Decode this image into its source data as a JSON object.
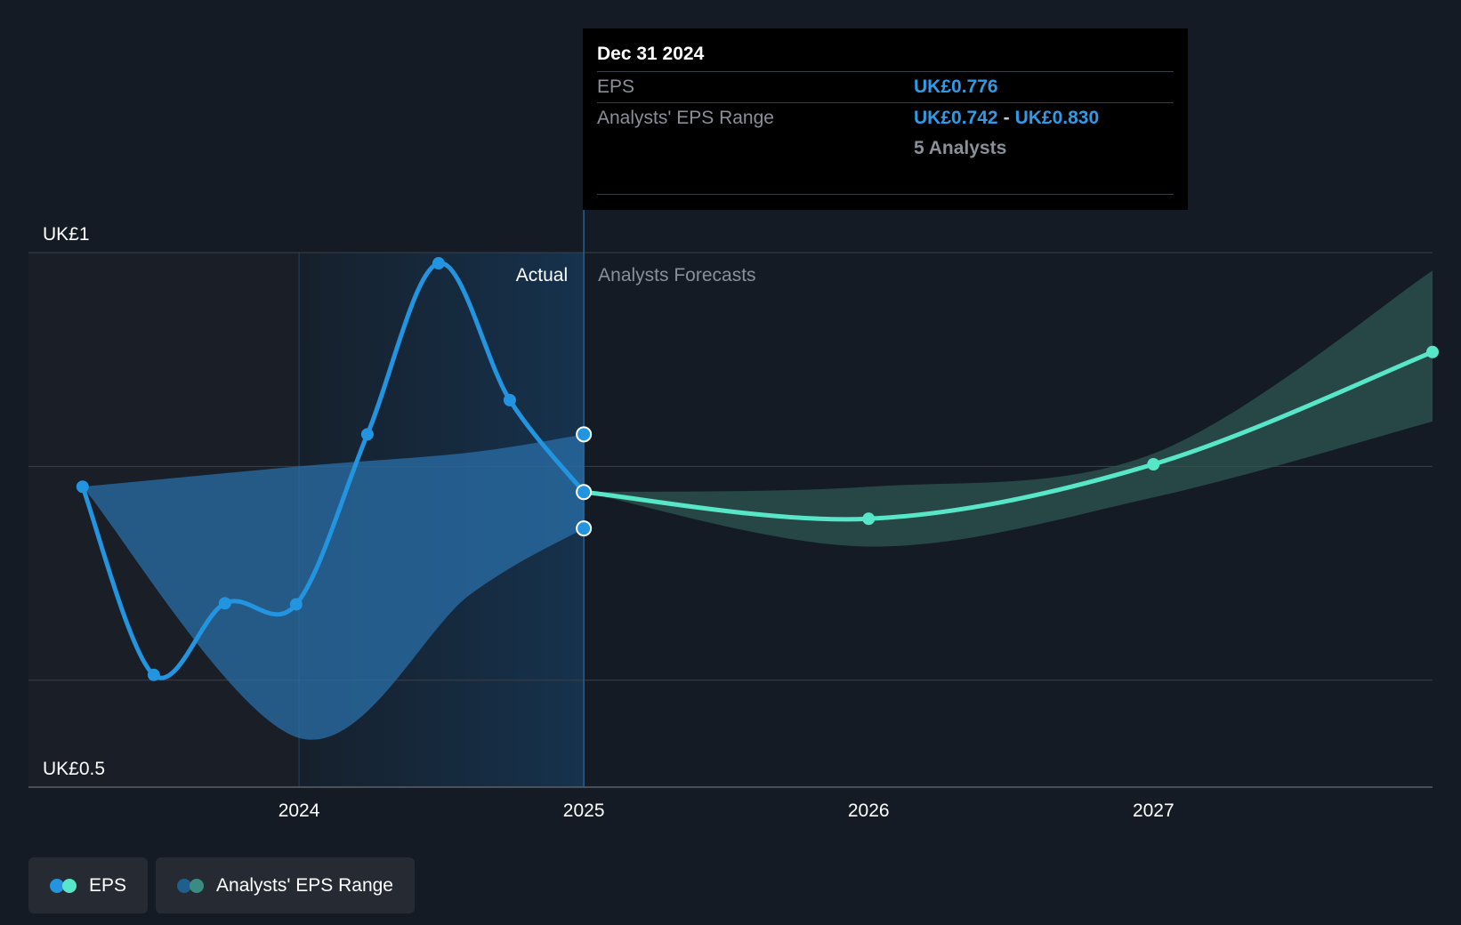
{
  "chart_data": {
    "type": "line",
    "y_ticks": [
      {
        "value": 1.0,
        "label": "UK£1"
      },
      {
        "value": 0.5,
        "label": "UK£0.5"
      }
    ],
    "ylim": [
      0.5,
      1.0
    ],
    "x_ticks": [
      {
        "value": 2024,
        "label": "2024"
      },
      {
        "value": 2025,
        "label": "2025"
      },
      {
        "value": 2026,
        "label": "2026"
      },
      {
        "value": 2027,
        "label": "2027"
      }
    ],
    "xlim": [
      2023.05,
      2027.98
    ],
    "divider_x": 2025.0,
    "highlight_start_x": 2024.0,
    "section_labels": {
      "actual": "Actual",
      "forecast": "Analysts Forecasts"
    },
    "series": [
      {
        "name": "EPS",
        "color": "#2394df",
        "points": [
          {
            "x": 2023.24,
            "y": 0.781
          },
          {
            "x": 2023.49,
            "y": 0.605
          },
          {
            "x": 2023.74,
            "y": 0.672
          },
          {
            "x": 2023.99,
            "y": 0.671
          },
          {
            "x": 2024.24,
            "y": 0.83
          },
          {
            "x": 2024.49,
            "y": 0.99
          },
          {
            "x": 2024.74,
            "y": 0.862
          },
          {
            "x": 2025.0,
            "y": 0.776
          }
        ]
      },
      {
        "name": "EPS",
        "color": "#58e6c9",
        "points": [
          {
            "x": 2025.0,
            "y": 0.776
          },
          {
            "x": 2026.0,
            "y": 0.751
          },
          {
            "x": 2027.0,
            "y": 0.802
          },
          {
            "x": 2027.98,
            "y": 0.907
          }
        ]
      }
    ],
    "range_series": [
      {
        "name": "Analysts' EPS Range",
        "color": "#2a6fa8",
        "upper": [
          {
            "x": 2023.24,
            "y": 0.781
          },
          {
            "x": 2024.0,
            "y": 0.8
          },
          {
            "x": 2024.6,
            "y": 0.813
          },
          {
            "x": 2025.0,
            "y": 0.83
          }
        ],
        "lower": [
          {
            "x": 2023.24,
            "y": 0.781
          },
          {
            "x": 2024.0,
            "y": 0.546
          },
          {
            "x": 2024.6,
            "y": 0.68
          },
          {
            "x": 2025.0,
            "y": 0.742
          }
        ]
      },
      {
        "name": "Analysts' EPS Range",
        "color": "#2e5a55",
        "upper": [
          {
            "x": 2025.0,
            "y": 0.776
          },
          {
            "x": 2026.0,
            "y": 0.781
          },
          {
            "x": 2027.0,
            "y": 0.812
          },
          {
            "x": 2027.98,
            "y": 0.983
          }
        ],
        "lower": [
          {
            "x": 2025.0,
            "y": 0.776
          },
          {
            "x": 2026.0,
            "y": 0.725
          },
          {
            "x": 2027.0,
            "y": 0.771
          },
          {
            "x": 2027.98,
            "y": 0.842
          }
        ]
      }
    ],
    "markers_at_divider": [
      0.83,
      0.776,
      0.742
    ]
  },
  "tooltip": {
    "date": "Dec 31 2024",
    "eps_label": "EPS",
    "eps_value": "UK£0.776",
    "range_label": "Analysts' EPS Range",
    "range_low": "UK£0.742",
    "range_sep": "-",
    "range_high": "UK£0.830",
    "analysts": "5 Analysts"
  },
  "legend": [
    {
      "label": "EPS",
      "colors": [
        "#2394df",
        "#58e6c9"
      ]
    },
    {
      "label": "Analysts' EPS Range",
      "colors": [
        "#1e5f8e",
        "#3c8b82"
      ]
    }
  ],
  "colors": {
    "background": "#151b24",
    "actual_panel": "#16324d",
    "grid": "#3a414b"
  }
}
